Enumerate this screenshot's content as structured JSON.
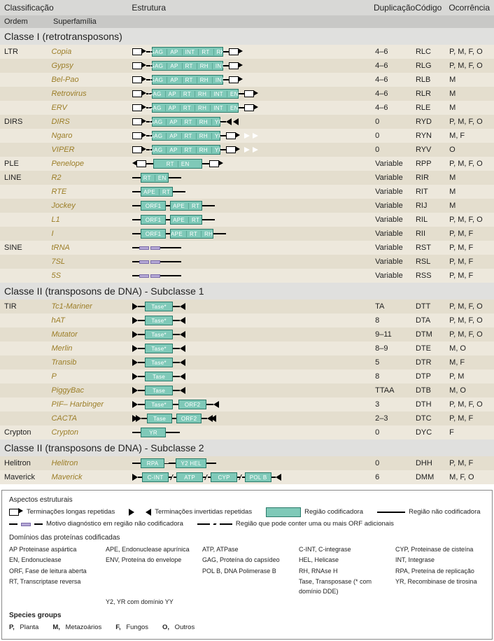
{
  "headers": {
    "classificacao": "Classificação",
    "estrutura": "Estrutura",
    "duplicacao": "Duplicação",
    "codigo": "Código",
    "ocorrencia": "Ocorrência",
    "ordem": "Ordem",
    "superfamilia": "Superfamília"
  },
  "sections": [
    {
      "title": "Classe I (retrotransposons)",
      "groups": [
        {
          "order": "LTR",
          "rows": [
            {
              "sf": "Copia",
              "struct": {
                "type": "ltr",
                "genes": [
                  "GAG",
                  "AP",
                  "INT",
                  "RT",
                  "RH"
                ]
              },
              "dup": "4–6",
              "cod": "RLC",
              "occ": "P, M, F, O"
            },
            {
              "sf": "Gypsy",
              "struct": {
                "type": "ltr",
                "genes": [
                  "GAG",
                  "AP",
                  "RT",
                  "RH",
                  "INT"
                ]
              },
              "dup": "4–6",
              "cod": "RLG",
              "occ": "P, M, F, O"
            },
            {
              "sf": "Bel-Pao",
              "struct": {
                "type": "ltr",
                "genes": [
                  "GAG",
                  "AP",
                  "RT",
                  "RH",
                  "INT"
                ]
              },
              "dup": "4–6",
              "cod": "RLB",
              "occ": "M"
            },
            {
              "sf": "Retrovirus",
              "struct": {
                "type": "ltr",
                "genes": [
                  "GAG",
                  "AP",
                  "RT",
                  "RH",
                  "INT",
                  "ENV"
                ]
              },
              "dup": "4–6",
              "cod": "RLR",
              "occ": "M"
            },
            {
              "sf": "ERV",
              "struct": {
                "type": "ltr",
                "genes": [
                  "GAG",
                  "AP",
                  "RT",
                  "RH",
                  "INT",
                  "ENV"
                ]
              },
              "dup": "4–6",
              "cod": "RLE",
              "occ": "M"
            }
          ]
        },
        {
          "order": "DIRS",
          "rows": [
            {
              "sf": "DIRS",
              "struct": {
                "type": "dirs",
                "genes": [
                  "GAG",
                  "AP",
                  "RT",
                  "RH",
                  "YR"
                ],
                "tail": "tri"
              },
              "dup": "0",
              "cod": "RYD",
              "occ": "P, M, F, O"
            },
            {
              "sf": "Ngaro",
              "struct": {
                "type": "dirs",
                "genes": [
                  "GAG",
                  "AP",
                  "RT",
                  "RH",
                  "YR"
                ],
                "tail": "open"
              },
              "dup": "0",
              "cod": "RYN",
              "occ": "M, F"
            },
            {
              "sf": "VIPER",
              "struct": {
                "type": "dirs",
                "genes": [
                  "GAG",
                  "AP",
                  "RT",
                  "RH",
                  "YR"
                ],
                "tail": "open"
              },
              "dup": "0",
              "cod": "RYV",
              "occ": "O"
            }
          ]
        },
        {
          "order": "PLE",
          "rows": [
            {
              "sf": "Penelope",
              "struct": {
                "type": "ple",
                "genes": [
                  "RT",
                  "EN"
                ]
              },
              "dup": "Variable",
              "cod": "RPP",
              "occ": "P, M, F, O"
            }
          ]
        },
        {
          "order": "LINE",
          "rows": [
            {
              "sf": "R2",
              "struct": {
                "type": "line",
                "boxes": [
                  [
                    "RT",
                    "EN"
                  ]
                ]
              },
              "dup": "Variable",
              "cod": "RIR",
              "occ": "M"
            },
            {
              "sf": "RTE",
              "struct": {
                "type": "line",
                "boxes": [
                  [
                    "APE",
                    "RT"
                  ]
                ]
              },
              "dup": "Variable",
              "cod": "RIT",
              "occ": "M"
            },
            {
              "sf": "Jockey",
              "struct": {
                "type": "line",
                "boxes": [
                  [
                    "ORF1"
                  ],
                  [
                    "APE",
                    "RT"
                  ]
                ]
              },
              "dup": "Variable",
              "cod": "RIJ",
              "occ": "M"
            },
            {
              "sf": "L1",
              "struct": {
                "type": "line",
                "boxes": [
                  [
                    "ORF1"
                  ],
                  [
                    "APE",
                    "RT"
                  ]
                ]
              },
              "dup": "Variable",
              "cod": "RIL",
              "occ": "P, M, F, O"
            },
            {
              "sf": "I",
              "struct": {
                "type": "line",
                "boxes": [
                  [
                    "ORF1"
                  ],
                  [
                    "APE",
                    "RT",
                    "RH"
                  ]
                ]
              },
              "dup": "Variable",
              "cod": "RII",
              "occ": "P, M, F"
            }
          ]
        },
        {
          "order": "SINE",
          "rows": [
            {
              "sf": "tRNA",
              "struct": {
                "type": "sine"
              },
              "dup": "Variable",
              "cod": "RST",
              "occ": "P, M, F"
            },
            {
              "sf": "7SL",
              "struct": {
                "type": "sine"
              },
              "dup": "Variable",
              "cod": "RSL",
              "occ": "P, M, F"
            },
            {
              "sf": "5S",
              "struct": {
                "type": "sine"
              },
              "dup": "Variable",
              "cod": "RSS",
              "occ": "P, M, F"
            }
          ]
        }
      ]
    },
    {
      "title": "Classe II (transposons de DNA) - Subclasse 1",
      "groups": [
        {
          "order": "TIR",
          "rows": [
            {
              "sf": "Tc1-Mariner",
              "struct": {
                "type": "tir",
                "boxes": [
                  [
                    "Tase*"
                  ]
                ]
              },
              "dup": "TA",
              "cod": "DTT",
              "occ": "P, M, F, O"
            },
            {
              "sf": "hAT",
              "struct": {
                "type": "tir",
                "boxes": [
                  [
                    "Tase*"
                  ]
                ]
              },
              "dup": "8",
              "cod": "DTA",
              "occ": "P, M, F, O"
            },
            {
              "sf": "Mutator",
              "struct": {
                "type": "tir",
                "boxes": [
                  [
                    "Tase*"
                  ]
                ]
              },
              "dup": "9–11",
              "cod": "DTM",
              "occ": "P, M, F, O"
            },
            {
              "sf": "Merlin",
              "struct": {
                "type": "tir",
                "boxes": [
                  [
                    "Tase*"
                  ]
                ]
              },
              "dup": "8–9",
              "cod": "DTE",
              "occ": "M, O"
            },
            {
              "sf": "Transib",
              "struct": {
                "type": "tir",
                "boxes": [
                  [
                    "Tase*"
                  ]
                ]
              },
              "dup": "5",
              "cod": "DTR",
              "occ": "M, F"
            },
            {
              "sf": "P",
              "struct": {
                "type": "tir",
                "boxes": [
                  [
                    "Tase"
                  ]
                ]
              },
              "dup": "8",
              "cod": "DTP",
              "occ": "P, M"
            },
            {
              "sf": "PiggyBac",
              "struct": {
                "type": "tir",
                "boxes": [
                  [
                    "Tase"
                  ]
                ]
              },
              "dup": "TTAA",
              "cod": "DTB",
              "occ": "M, O"
            },
            {
              "sf": "PIF– Harbinger",
              "struct": {
                "type": "tir",
                "boxes": [
                  [
                    "Tase*"
                  ],
                  [
                    "ORF2"
                  ]
                ]
              },
              "dup": "3",
              "cod": "DTH",
              "occ": "P, M, F, O"
            },
            {
              "sf": "CACTA",
              "struct": {
                "type": "cacta",
                "boxes": [
                  [
                    "Tase"
                  ],
                  [
                    "ORF2"
                  ]
                ]
              },
              "dup": "2–3",
              "cod": "DTC",
              "occ": "P, M, F"
            }
          ]
        },
        {
          "order": "Crypton",
          "rows": [
            {
              "sf": "Crypton",
              "struct": {
                "type": "crypton",
                "boxes": [
                  [
                    "YR"
                  ]
                ]
              },
              "dup": "0",
              "cod": "DYC",
              "occ": "F"
            }
          ]
        }
      ]
    },
    {
      "title": "Classe II (transposons de DNA) - Subclasse 2",
      "groups": [
        {
          "order": "Helitron",
          "rows": [
            {
              "sf": "Helitron",
              "struct": {
                "type": "helitron",
                "boxes": [
                  [
                    "RPA"
                  ],
                  [
                    "Y2 HEL"
                  ]
                ]
              },
              "dup": "0",
              "cod": "DHH",
              "occ": "P, M, F"
            }
          ]
        },
        {
          "order": "Maverick",
          "rows": [
            {
              "sf": "Maverick",
              "struct": {
                "type": "maverick",
                "boxes": [
                  [
                    "C-INT"
                  ],
                  [
                    "ATP"
                  ],
                  [
                    "CYP"
                  ],
                  [
                    "POL B"
                  ]
                ]
              },
              "dup": "6",
              "cod": "DMM",
              "occ": "M, F, O"
            }
          ]
        }
      ]
    }
  ],
  "legend": {
    "struct_title": "Aspectos estruturais",
    "items": {
      "ltr": "Terminações longas repetidas",
      "tir": "Terminações invertidas repetidas",
      "coding": "Região codificadora",
      "noncoding": "Região não codificadora",
      "diag": "Motivo diagnóstico em região não codificadora",
      "orf": "Região que pode conter uma ou mais ORF adicionais"
    },
    "domain_title": "Domínios das proteínas codificadas",
    "abbrevs": [
      {
        "k": "AP",
        "v": "Proteinase aspártica"
      },
      {
        "k": "APE,",
        "v": "Endonuclease apurínica"
      },
      {
        "k": "ATP,",
        "v": "ATPase"
      },
      {
        "k": "C-INT,",
        "v": "C-integrase"
      },
      {
        "k": "CYP,",
        "v": "Proteinase de cisteína"
      },
      {
        "k": "EN,",
        "v": "Endonuclease"
      },
      {
        "k": "ENV,",
        "v": "Proteína do envelope"
      },
      {
        "k": "GAG,",
        "v": "Proteína do capsídeo"
      },
      {
        "k": "HEL,",
        "v": "Helicase"
      },
      {
        "k": "INT,",
        "v": "Integrase"
      },
      {
        "k": "ORF,",
        "v": "Fase de leitura aberta"
      },
      {
        "k": "",
        "v": ""
      },
      {
        "k": "POL B,",
        "v": "DNA Polimerase B"
      },
      {
        "k": "RH,",
        "v": "RNAse H"
      },
      {
        "k": "RPA,",
        "v": "Preteína de replicação"
      },
      {
        "k": "RT,",
        "v": "Transcriptase reversa"
      },
      {
        "k": "",
        "v": ""
      },
      {
        "k": "",
        "v": ""
      },
      {
        "k": "Tase,",
        "v": "Transposase (* com domínio DDE)"
      },
      {
        "k": "YR,",
        "v": "Recombinase de tirosina"
      },
      {
        "k": "",
        "v": ""
      },
      {
        "k": "Y2,",
        "v": "YR com domínio YY"
      }
    ],
    "species_title": "Species groups",
    "species": [
      {
        "k": "P,",
        "v": "Planta"
      },
      {
        "k": "M,",
        "v": "Metazoários"
      },
      {
        "k": "F,",
        "v": "Fungos"
      },
      {
        "k": "O,",
        "v": "Outros"
      }
    ]
  },
  "colors": {
    "gene_fill": "#7fc9b8",
    "gene_border": "#2a7a6a",
    "row_alt0": "#ede8dc",
    "row_alt1": "#e4dece",
    "header_bg": "#d8d8d6",
    "section_bg": "#e0e0de",
    "super_color": "#9c7e28"
  }
}
